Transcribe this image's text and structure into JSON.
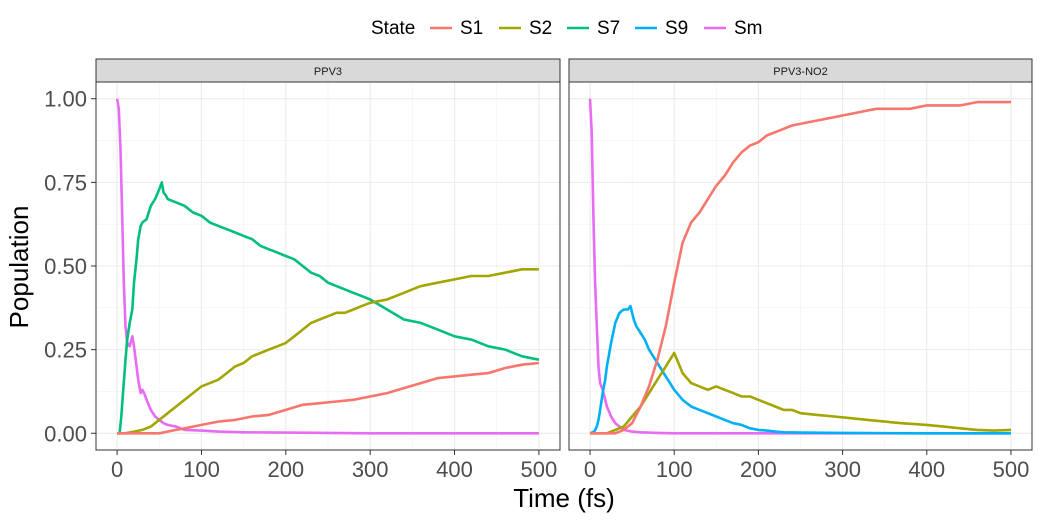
{
  "chart_data": {
    "type": "line",
    "xlabel": "Time (fs)",
    "ylabel": "Population",
    "xlim": [
      0,
      500
    ],
    "ylim": [
      0,
      1
    ],
    "xticks": [
      "0",
      "100",
      "200",
      "300",
      "400",
      "500"
    ],
    "yticks": [
      "0.00",
      "0.25",
      "0.50",
      "0.75",
      "1.00"
    ],
    "legend": {
      "title": "State",
      "position": "top",
      "entries": [
        {
          "name": "S1",
          "color": "#F8766D"
        },
        {
          "name": "S2",
          "color": "#A3A500"
        },
        {
          "name": "S7",
          "color": "#00BF7D"
        },
        {
          "name": "S9",
          "color": "#00B0F6"
        },
        {
          "name": "Sm",
          "color": "#E76BF3"
        }
      ]
    },
    "grid": true,
    "panels": [
      {
        "title": "PPV3",
        "series": [
          {
            "name": "Sm",
            "x": [
              0,
              2,
              4,
              6,
              8,
              10,
              12,
              15,
              18,
              20,
              25,
              28,
              30,
              32,
              35,
              40,
              45,
              50,
              55,
              60,
              70,
              80,
              100,
              120,
              150,
              200,
              250,
              300,
              400,
              500
            ],
            "y": [
              1.0,
              0.97,
              0.85,
              0.65,
              0.45,
              0.32,
              0.27,
              0.26,
              0.29,
              0.26,
              0.16,
              0.12,
              0.13,
              0.12,
              0.1,
              0.07,
              0.05,
              0.04,
              0.03,
              0.025,
              0.02,
              0.01,
              0.008,
              0.005,
              0.003,
              0.002,
              0.001,
              0.0,
              0.0,
              0.0
            ]
          },
          {
            "name": "S7",
            "x": [
              0,
              3,
              5,
              7,
              10,
              12,
              15,
              18,
              20,
              23,
              25,
              28,
              30,
              35,
              40,
              45,
              50,
              53,
              55,
              58,
              60,
              70,
              80,
              90,
              100,
              110,
              120,
              130,
              140,
              150,
              160,
              170,
              180,
              190,
              200,
              210,
              220,
              230,
              240,
              250,
              260,
              270,
              280,
              290,
              300,
              320,
              340,
              360,
              380,
              400,
              420,
              440,
              460,
              480,
              500
            ],
            "y": [
              0.0,
              0.0,
              0.05,
              0.12,
              0.22,
              0.28,
              0.33,
              0.37,
              0.45,
              0.52,
              0.58,
              0.62,
              0.63,
              0.64,
              0.68,
              0.7,
              0.73,
              0.75,
              0.72,
              0.71,
              0.7,
              0.69,
              0.68,
              0.66,
              0.65,
              0.63,
              0.62,
              0.61,
              0.6,
              0.59,
              0.58,
              0.56,
              0.55,
              0.54,
              0.53,
              0.52,
              0.5,
              0.48,
              0.47,
              0.45,
              0.44,
              0.43,
              0.42,
              0.41,
              0.4,
              0.37,
              0.34,
              0.33,
              0.31,
              0.29,
              0.28,
              0.26,
              0.25,
              0.23,
              0.22
            ]
          },
          {
            "name": "S2",
            "x": [
              0,
              10,
              20,
              30,
              40,
              45,
              50,
              60,
              70,
              80,
              90,
              100,
              110,
              120,
              130,
              140,
              150,
              160,
              170,
              180,
              190,
              200,
              210,
              220,
              230,
              240,
              250,
              260,
              270,
              280,
              290,
              300,
              320,
              340,
              360,
              380,
              400,
              420,
              440,
              460,
              480,
              500
            ],
            "y": [
              0.0,
              0.0,
              0.005,
              0.01,
              0.02,
              0.03,
              0.04,
              0.06,
              0.08,
              0.1,
              0.12,
              0.14,
              0.15,
              0.16,
              0.18,
              0.2,
              0.21,
              0.23,
              0.24,
              0.25,
              0.26,
              0.27,
              0.29,
              0.31,
              0.33,
              0.34,
              0.35,
              0.36,
              0.36,
              0.37,
              0.38,
              0.39,
              0.4,
              0.42,
              0.44,
              0.45,
              0.46,
              0.47,
              0.47,
              0.48,
              0.49,
              0.49
            ]
          },
          {
            "name": "S1",
            "x": [
              0,
              50,
              70,
              80,
              90,
              100,
              120,
              140,
              160,
              180,
              200,
              220,
              240,
              260,
              280,
              300,
              320,
              340,
              360,
              380,
              400,
              420,
              440,
              460,
              480,
              500
            ],
            "y": [
              0.0,
              0.0,
              0.01,
              0.015,
              0.02,
              0.025,
              0.035,
              0.04,
              0.05,
              0.055,
              0.07,
              0.085,
              0.09,
              0.095,
              0.1,
              0.11,
              0.12,
              0.135,
              0.15,
              0.165,
              0.17,
              0.175,
              0.18,
              0.195,
              0.205,
              0.21
            ]
          }
        ]
      },
      {
        "title": "PPV3-NO2",
        "series": [
          {
            "name": "Sm",
            "x": [
              0,
              2,
              4,
              6,
              8,
              10,
              12,
              15,
              18,
              20,
              25,
              30,
              35,
              40,
              50,
              60,
              80,
              100,
              150,
              200,
              300,
              400,
              500
            ],
            "y": [
              1.0,
              0.9,
              0.65,
              0.45,
              0.32,
              0.2,
              0.15,
              0.13,
              0.1,
              0.08,
              0.05,
              0.03,
              0.02,
              0.01,
              0.005,
              0.003,
              0.001,
              0.0,
              0.0,
              0.0,
              0.0,
              0.0,
              0.0
            ]
          },
          {
            "name": "S9",
            "x": [
              0,
              5,
              8,
              10,
              12,
              15,
              18,
              20,
              25,
              30,
              35,
              40,
              45,
              48,
              50,
              52,
              55,
              60,
              65,
              70,
              75,
              80,
              90,
              100,
              110,
              120,
              130,
              140,
              150,
              160,
              170,
              180,
              190,
              200,
              210,
              220,
              230,
              250,
              300,
              400,
              500
            ],
            "y": [
              0.0,
              0.005,
              0.02,
              0.04,
              0.07,
              0.12,
              0.16,
              0.2,
              0.27,
              0.33,
              0.36,
              0.37,
              0.37,
              0.38,
              0.36,
              0.34,
              0.32,
              0.3,
              0.28,
              0.25,
              0.23,
              0.21,
              0.17,
              0.13,
              0.1,
              0.08,
              0.07,
              0.06,
              0.05,
              0.04,
              0.03,
              0.025,
              0.015,
              0.01,
              0.008,
              0.005,
              0.003,
              0.002,
              0.001,
              0.0,
              0.0
            ]
          },
          {
            "name": "S2",
            "x": [
              0,
              20,
              30,
              40,
              50,
              60,
              70,
              80,
              90,
              95,
              100,
              105,
              110,
              120,
              130,
              140,
              150,
              160,
              170,
              180,
              190,
              200,
              210,
              220,
              230,
              240,
              250,
              270,
              290,
              310,
              330,
              350,
              370,
              400,
              420,
              440,
              460,
              480,
              500
            ],
            "y": [
              0.0,
              0.0,
              0.01,
              0.02,
              0.05,
              0.08,
              0.12,
              0.16,
              0.2,
              0.22,
              0.24,
              0.21,
              0.18,
              0.15,
              0.14,
              0.13,
              0.14,
              0.13,
              0.12,
              0.11,
              0.11,
              0.1,
              0.09,
              0.08,
              0.07,
              0.07,
              0.06,
              0.055,
              0.05,
              0.045,
              0.04,
              0.035,
              0.03,
              0.025,
              0.02,
              0.015,
              0.01,
              0.008,
              0.01
            ]
          },
          {
            "name": "S1",
            "x": [
              0,
              30,
              40,
              50,
              60,
              70,
              80,
              90,
              100,
              110,
              120,
              130,
              140,
              150,
              160,
              170,
              180,
              190,
              200,
              210,
              220,
              240,
              260,
              280,
              300,
              320,
              340,
              360,
              380,
              400,
              420,
              440,
              460,
              480,
              500
            ],
            "y": [
              0.0,
              0.0,
              0.01,
              0.03,
              0.08,
              0.14,
              0.22,
              0.32,
              0.45,
              0.57,
              0.63,
              0.66,
              0.7,
              0.74,
              0.77,
              0.81,
              0.84,
              0.86,
              0.87,
              0.89,
              0.9,
              0.92,
              0.93,
              0.94,
              0.95,
              0.96,
              0.97,
              0.97,
              0.97,
              0.98,
              0.98,
              0.98,
              0.99,
              0.99,
              0.99
            ]
          }
        ]
      }
    ]
  }
}
